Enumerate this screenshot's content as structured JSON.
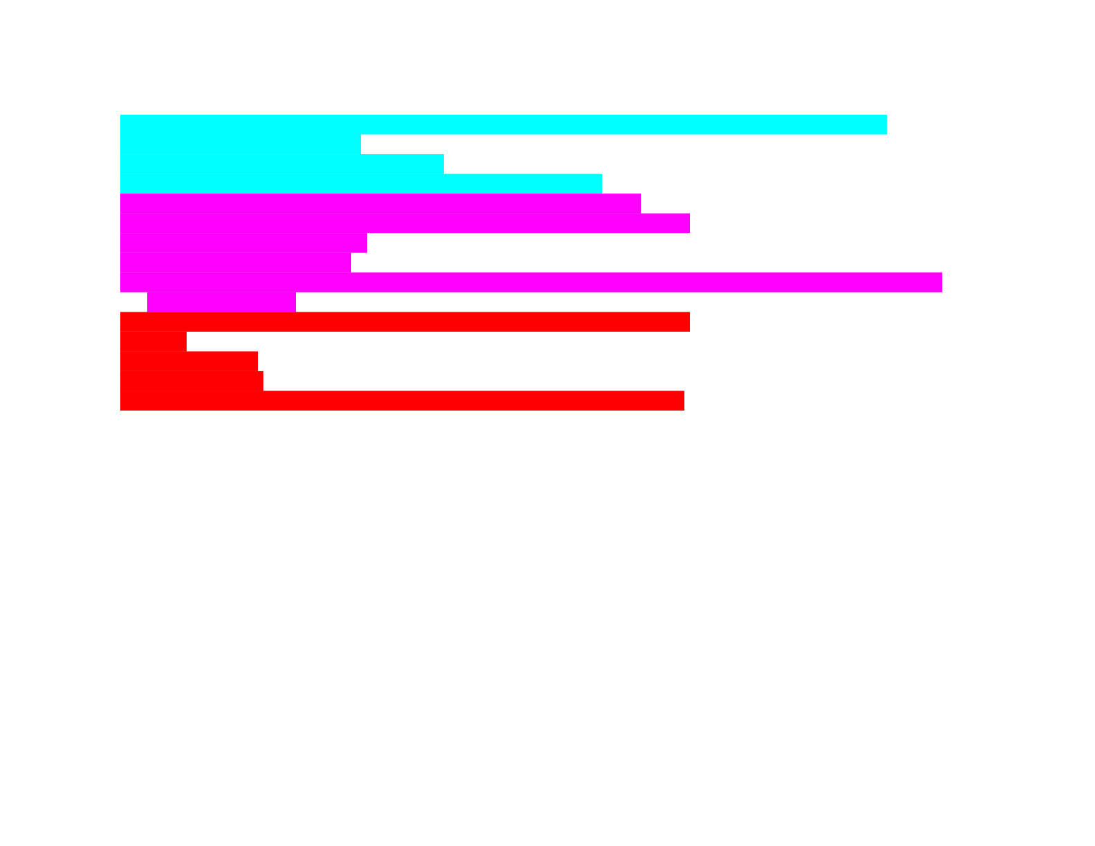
{
  "chart_data": {
    "type": "bar",
    "orientation": "horizontal",
    "xlim": [
      0,
      1410
    ],
    "series": [
      {
        "color": "#00ffff",
        "starts": [
          0,
          0,
          0,
          0
        ],
        "values": [
          1109,
          348,
          468,
          697
        ]
      },
      {
        "color": "#ff00ff",
        "starts": [
          0,
          0,
          0,
          0,
          0,
          39
        ],
        "values": [
          753,
          824,
          357,
          334,
          1189,
          254
        ]
      },
      {
        "color": "#ff0000",
        "starts": [
          0,
          0,
          0,
          0,
          0
        ],
        "values": [
          824,
          96,
          199,
          207,
          816
        ]
      }
    ]
  }
}
